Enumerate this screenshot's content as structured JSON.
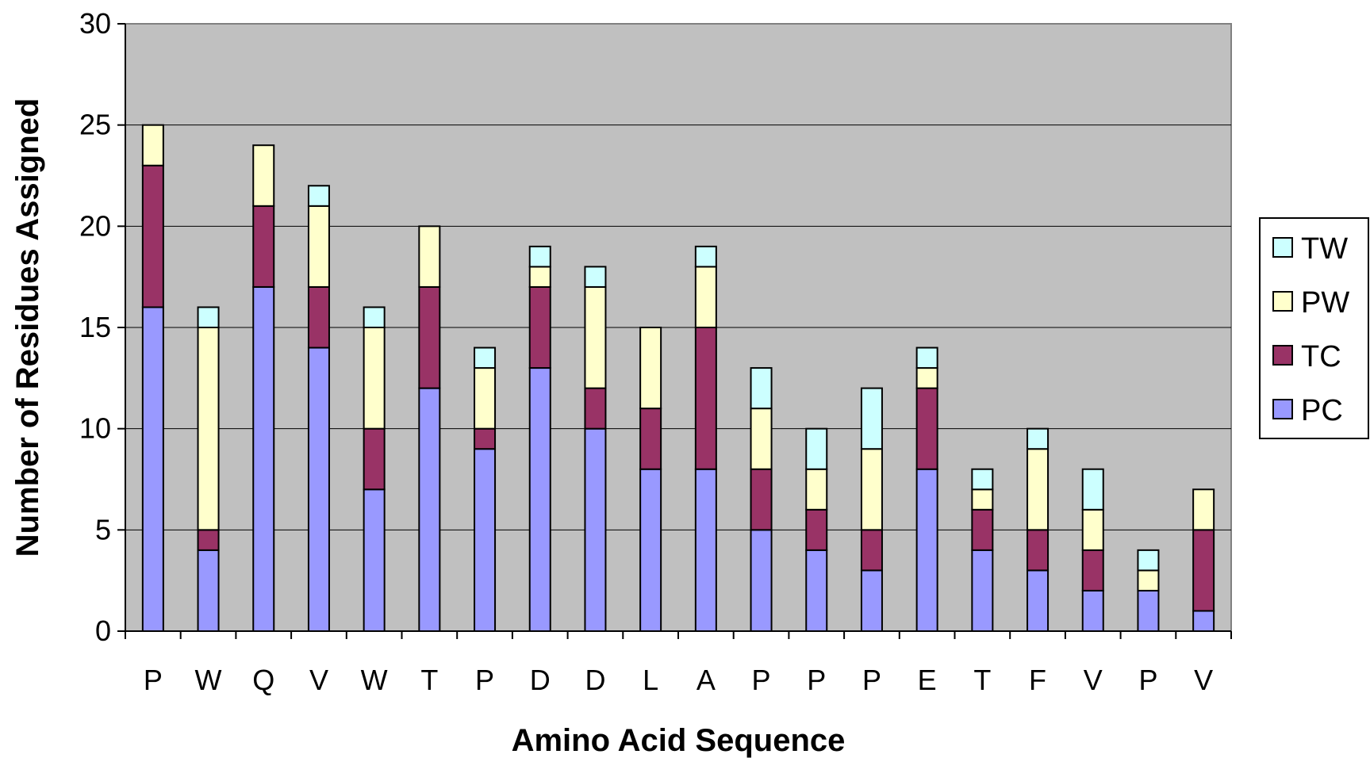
{
  "chart_data": {
    "type": "bar",
    "stacked": true,
    "categories": [
      "P",
      "W",
      "Q",
      "V",
      "W",
      "T",
      "P",
      "D",
      "D",
      "L",
      "A",
      "P",
      "P",
      "P",
      "E",
      "T",
      "F",
      "V",
      "P",
      "V"
    ],
    "series": [
      {
        "name": "PC",
        "color": "#9999FF",
        "values": [
          16,
          4,
          17,
          14,
          7,
          12,
          9,
          13,
          10,
          8,
          8,
          5,
          4,
          3,
          8,
          4,
          3,
          2,
          2,
          1
        ]
      },
      {
        "name": "TC",
        "color": "#993366",
        "values": [
          7,
          1,
          4,
          3,
          3,
          5,
          1,
          4,
          2,
          3,
          7,
          3,
          2,
          2,
          4,
          2,
          2,
          2,
          0,
          4
        ]
      },
      {
        "name": "PW",
        "color": "#FFFFCC",
        "values": [
          2,
          10,
          3,
          4,
          5,
          3,
          3,
          1,
          5,
          4,
          3,
          3,
          2,
          4,
          1,
          1,
          4,
          2,
          1,
          2
        ]
      },
      {
        "name": "TW",
        "color": "#CCFFFF",
        "values": [
          0,
          1,
          0,
          1,
          1,
          0,
          1,
          1,
          1,
          0,
          1,
          2,
          2,
          3,
          1,
          1,
          1,
          2,
          1,
          0
        ]
      }
    ],
    "xlabel": "Amino Acid Sequence",
    "ylabel": "Number of Residues Assigned",
    "ylim": [
      0,
      30
    ],
    "yticks": [
      0,
      5,
      10,
      15,
      20,
      25,
      30
    ],
    "grid": true,
    "plot_background": "#C0C0C0",
    "legend_position": "right",
    "legend_order": [
      "TW",
      "PW",
      "TC",
      "PC"
    ]
  }
}
